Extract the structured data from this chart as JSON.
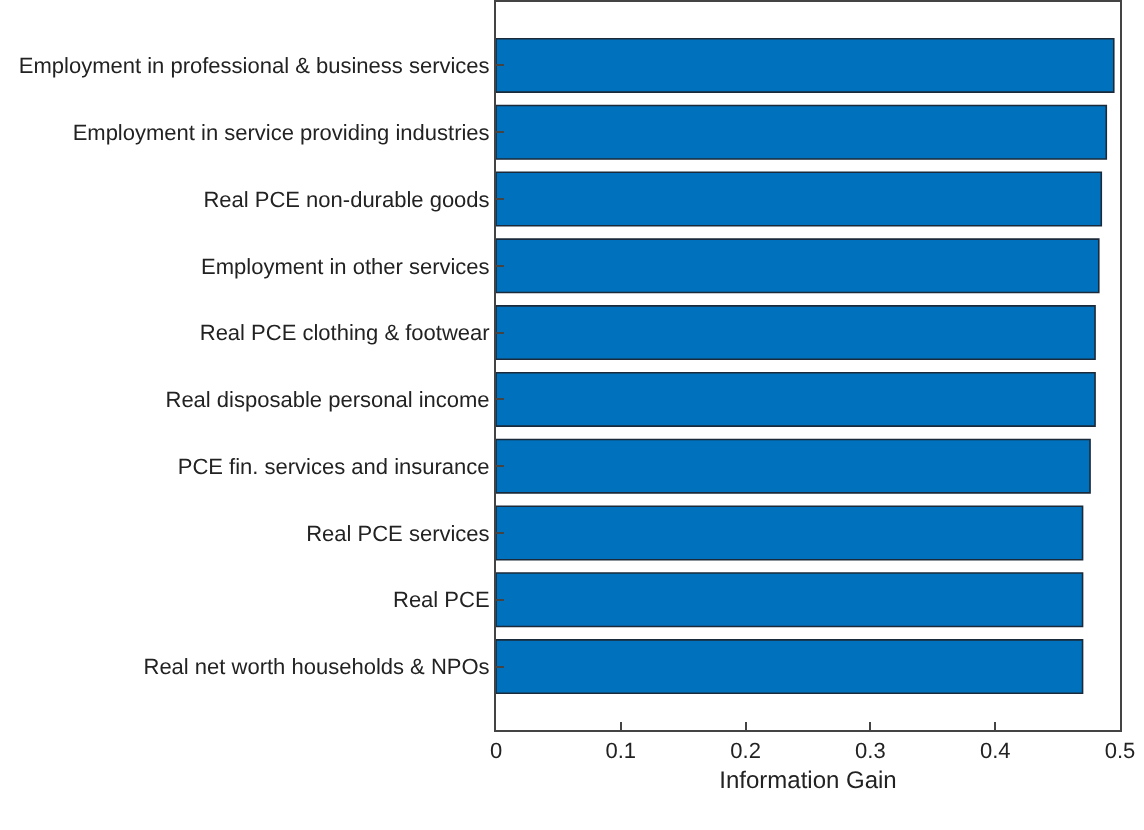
{
  "chart_data": {
    "type": "bar",
    "orientation": "horizontal",
    "xlabel": "Information Gain",
    "categories": [
      "Employment in professional & business services",
      "Employment in service providing industries",
      "Real PCE non-durable goods",
      "Employment in other services",
      "Real PCE clothing & footwear",
      "Real disposable personal income",
      "PCE fin. services and insurance",
      "Real PCE services",
      "Real PCE",
      "Real net worth households & NPOs"
    ],
    "values": [
      0.495,
      0.489,
      0.485,
      0.483,
      0.48,
      0.48,
      0.476,
      0.47,
      0.47,
      0.47
    ],
    "color": "#0072bd",
    "xlim": [
      0,
      0.5
    ],
    "xticks": [
      0,
      0.1,
      0.2,
      0.3,
      0.4,
      0.5
    ],
    "grid": false
  }
}
